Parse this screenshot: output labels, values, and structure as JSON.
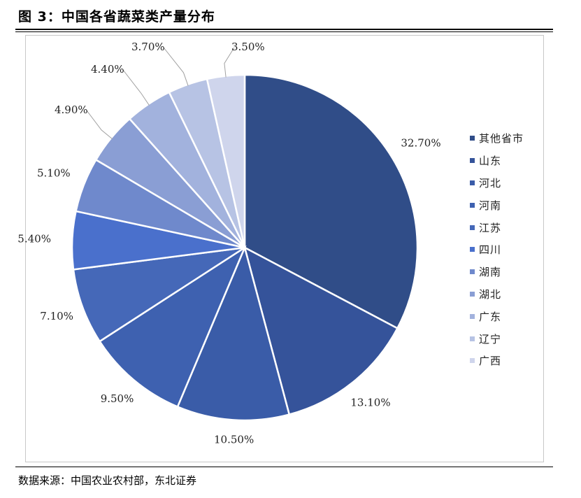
{
  "figure": {
    "title": "图 3：中国各省蔬菜类产量分布",
    "source": "数据来源：中国农业农村部，东北证券"
  },
  "chart_data": {
    "type": "pie",
    "title": "",
    "categories": [
      "其他省市",
      "山东",
      "河北",
      "河南",
      "江苏",
      "四川",
      "湖南",
      "湖北",
      "广东",
      "辽宁",
      "广西"
    ],
    "values": [
      32.7,
      13.1,
      10.5,
      9.5,
      7.1,
      5.4,
      5.1,
      4.9,
      4.4,
      3.7,
      3.5
    ],
    "labels": [
      "32.70%",
      "13.10%",
      "10.50%",
      "9.50%",
      "7.10%",
      "5.40%",
      "5.10%",
      "4.90%",
      "4.40%",
      "3.70%",
      "3.50%"
    ],
    "colors": [
      "#304d88",
      "#35539a",
      "#3a5ca8",
      "#3e61b0",
      "#4568b8",
      "#4a70cc",
      "#6f89cc",
      "#8a9ed4",
      "#a2b2dd",
      "#b7c3e4",
      "#cfd5ec"
    ],
    "start": "12 o'clock",
    "direction": "clockwise",
    "legend_position": "right"
  }
}
